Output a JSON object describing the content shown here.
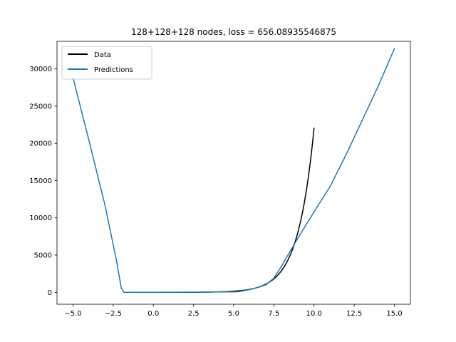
{
  "chart_data": {
    "type": "line",
    "title": "128+128+128 nodes, loss = 656.08935546875",
    "xlabel": "",
    "ylabel": "",
    "xlim": [
      -5.999,
      15.999
    ],
    "ylim": [
      -1600,
      33700
    ],
    "xticks": [
      -5.0,
      -2.5,
      0.0,
      2.5,
      5.0,
      7.5,
      10.0,
      12.5,
      15.0
    ],
    "xtick_labels": [
      "−5.0",
      "−2.5",
      "0.0",
      "2.5",
      "5.0",
      "7.5",
      "10.0",
      "12.5",
      "15.0"
    ],
    "yticks": [
      0,
      5000,
      10000,
      15000,
      20000,
      25000,
      30000
    ],
    "ytick_labels": [
      "0",
      "5000",
      "10000",
      "15000",
      "20000",
      "25000",
      "30000"
    ],
    "grid": false,
    "legend_position": "top-left",
    "series": [
      {
        "name": "Data",
        "color": "#000000",
        "function": "exp",
        "x_range": [
          0,
          10
        ],
        "points": 201
      },
      {
        "name": "Predictions",
        "color": "#1f77b4",
        "x": [
          -5.0,
          -4.0,
          -3.0,
          -2.3,
          -2.0,
          -1.85,
          0.0,
          2.5,
          5.0,
          5.3,
          6.0,
          6.5,
          7.0,
          7.5,
          8.0,
          9.0,
          10.0,
          11.0,
          12.0,
          13.0,
          14.0,
          15.0
        ],
        "y": [
          28800,
          20300,
          11600,
          4300,
          600,
          0,
          0,
          20,
          60,
          90,
          370,
          640,
          1000,
          1900,
          3600,
          7300,
          10800,
          14200,
          18500,
          23100,
          27700,
          32700
        ]
      }
    ]
  }
}
